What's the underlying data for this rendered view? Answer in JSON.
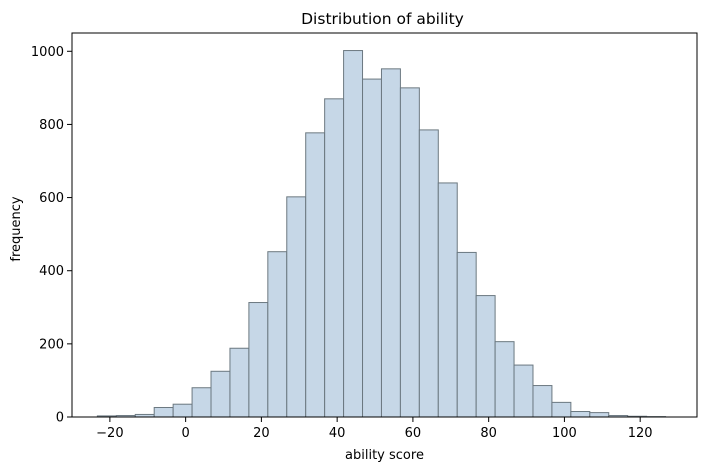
{
  "chart_data": {
    "type": "bar",
    "title": "Distribution of ability",
    "xlabel": "ability score",
    "ylabel": "frequency",
    "xlim": [
      -30,
      135
    ],
    "ylim": [
      0,
      1050
    ],
    "xticks": [
      -20,
      0,
      20,
      40,
      60,
      80,
      100,
      120
    ],
    "yticks": [
      0,
      200,
      400,
      600,
      800,
      1000
    ],
    "bin_edges": [
      -23.3,
      -18.3,
      -13.3,
      -8.3,
      -3.3,
      1.7,
      6.7,
      11.7,
      16.7,
      21.7,
      26.7,
      31.7,
      36.7,
      41.7,
      46.7,
      51.7,
      56.7,
      61.7,
      66.7,
      71.7,
      76.7,
      81.7,
      86.7,
      91.7,
      96.7,
      101.7,
      106.7,
      111.7,
      116.7,
      121.7,
      126.7
    ],
    "values": [
      3,
      4,
      7,
      26,
      35,
      80,
      125,
      188,
      313,
      452,
      602,
      777,
      870,
      1002,
      924,
      952,
      900,
      785,
      640,
      450,
      332,
      206,
      142,
      86,
      40,
      15,
      12,
      4,
      2,
      1
    ],
    "colors": {
      "bar_fill": "#c6d7e7",
      "bar_edge": "#6b7880",
      "axis": "#000000"
    },
    "grid": false
  }
}
